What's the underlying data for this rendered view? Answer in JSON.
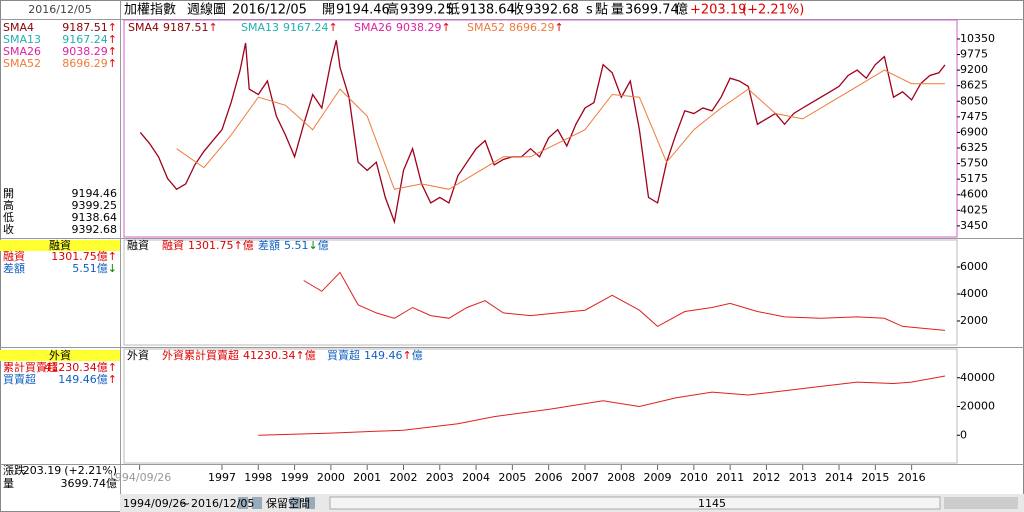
{
  "header": {
    "name": "加權指數",
    "period": "週線圖",
    "date": "2016/12/05",
    "open_label": "開",
    "open": 9194.46,
    "high_label": "高",
    "high": 9399.25,
    "low_label": "低",
    "low": 9138.64,
    "close_label": "收",
    "close": 9392.68,
    "close_flag": "s",
    "unit": "點",
    "volume_label": "量",
    "volume": 3699.74,
    "volume_unit": "億",
    "change": "+203.19",
    "change_pct": "(+2.21%)"
  },
  "sma": [
    {
      "name": "SMA4",
      "value": 9187.51,
      "arrow": "↑",
      "color": "#8b0000"
    },
    {
      "name": "SMA13",
      "value": 9167.24,
      "arrow": "↑",
      "color": "#20b0b0"
    },
    {
      "name": "SMA26",
      "value": 9038.29,
      "arrow": "↑",
      "color": "#e020a0"
    },
    {
      "name": "SMA52",
      "value": 8696.29,
      "arrow": "↑",
      "color": "#f07a3a"
    }
  ],
  "margin": {
    "title": "融資",
    "balance_label": "融資",
    "balance": 1301.75,
    "unit": "億",
    "balance_arrow": "↑",
    "diff_label": "差額",
    "diff": 5.51,
    "diff_arrow": "↓"
  },
  "foreign": {
    "title": "外資",
    "cum_label": "累計買賣超",
    "cum": 41230.34,
    "cum_arrow": "↑",
    "net_label": "買賣超",
    "net": 149.46,
    "net_arrow": "↑"
  },
  "summary": {
    "change_label": "漲跌",
    "change": 203.19,
    "change_pct": "(+2.21%)"
  },
  "footer": {
    "start": "1994/09/26",
    "sep": "~",
    "end": "2016/12/05",
    "reserve": "保留空間",
    "count": 1145
  },
  "chart_data": [
    {
      "type": "line",
      "xlim": [
        1994.3,
        2017.25
      ],
      "ylim": [
        3040,
        11050
      ],
      "yticks": [
        3450,
        4025,
        4600,
        5175,
        5750,
        6325,
        6900,
        7475,
        8050,
        8625,
        9200,
        9775,
        10350
      ],
      "xticks": [
        {
          "value": 1994.73,
          "label": "1994/09/26"
        },
        1997,
        1998,
        1999,
        2000,
        2001,
        2002,
        2003,
        2004,
        2005,
        2006,
        2007,
        2008,
        2009,
        2010,
        2011,
        2012,
        2013,
        2014,
        2015,
        2016
      ],
      "series": [
        {
          "color": "#a0001a",
          "x": [
            1994.75,
            1995,
            1995.25,
            1995.5,
            1995.75,
            1996,
            1996.25,
            1996.5,
            1996.75,
            1997,
            1997.25,
            1997.5,
            1997.65,
            1997.75,
            1998,
            1998.25,
            1998.5,
            1998.75,
            1999,
            1999.25,
            1999.5,
            1999.75,
            2000,
            2000.15,
            2000.25,
            2000.5,
            2000.75,
            2001,
            2001.25,
            2001.5,
            2001.75,
            2002,
            2002.25,
            2002.5,
            2002.75,
            2003,
            2003.25,
            2003.5,
            2003.75,
            2004,
            2004.25,
            2004.5,
            2004.75,
            2005,
            2005.25,
            2005.5,
            2005.75,
            2006,
            2006.25,
            2006.5,
            2006.75,
            2007,
            2007.25,
            2007.5,
            2007.75,
            2008,
            2008.25,
            2008.5,
            2008.75,
            2009,
            2009.25,
            2009.5,
            2009.75,
            2010,
            2010.25,
            2010.5,
            2010.75,
            2011,
            2011.25,
            2011.5,
            2011.75,
            2012,
            2012.25,
            2012.5,
            2012.75,
            2013,
            2013.25,
            2013.5,
            2013.75,
            2014,
            2014.25,
            2014.5,
            2014.75,
            2015,
            2015.25,
            2015.5,
            2015.75,
            2016,
            2016.25,
            2016.5,
            2016.75,
            2016.92
          ],
          "values": [
            6900,
            6500,
            6000,
            5200,
            4800,
            5000,
            5700,
            6200,
            6600,
            7000,
            8000,
            9200,
            10200,
            8500,
            8300,
            8800,
            7500,
            6800,
            6000,
            7200,
            8300,
            7800,
            9500,
            10300,
            9300,
            8200,
            5800,
            5500,
            5800,
            4500,
            3600,
            5500,
            6300,
            5000,
            4300,
            4500,
            4300,
            5300,
            5800,
            6300,
            6600,
            5700,
            5900,
            6000,
            6000,
            6300,
            6000,
            6700,
            7000,
            6400,
            7200,
            7800,
            8000,
            9400,
            9100,
            8200,
            8800,
            7000,
            4500,
            4300,
            5800,
            6800,
            7700,
            7600,
            7800,
            7700,
            8200,
            8900,
            8800,
            8600,
            7200,
            7400,
            7600,
            7200,
            7600,
            7800,
            8000,
            8200,
            8400,
            8600,
            9000,
            9200,
            8900,
            9400,
            9700,
            8200,
            8400,
            8100,
            8700,
            9000,
            9100,
            9392.68
          ]
        },
        {
          "name": "SMA52",
          "color": "#f07a3a",
          "x": [
            1995.75,
            1996.5,
            1997.25,
            1998,
            1998.75,
            1999.5,
            2000.25,
            2001,
            2001.75,
            2002.5,
            2003.25,
            2004,
            2004.75,
            2005.5,
            2006.25,
            2007,
            2007.75,
            2008.5,
            2009.25,
            2010,
            2010.75,
            2011.5,
            2012.25,
            2013,
            2013.75,
            2014.5,
            2015.25,
            2016,
            2016.92
          ],
          "values": [
            6300,
            5600,
            6800,
            8200,
            7900,
            7000,
            8500,
            7500,
            4800,
            5000,
            4800,
            5400,
            6000,
            6000,
            6500,
            7000,
            8300,
            8200,
            5800,
            7000,
            7800,
            8500,
            7600,
            7400,
            8000,
            8600,
            9200,
            8700,
            8696.29
          ]
        }
      ]
    },
    {
      "type": "line",
      "xlim": [
        1994.3,
        2017.25
      ],
      "ylim": [
        220,
        8000
      ],
      "yticks": [
        2000,
        4000,
        6000
      ],
      "series": [
        {
          "name": "融資",
          "color": "#e02020",
          "x": [
            1999.25,
            1999.75,
            2000.25,
            2000.75,
            2001.25,
            2001.75,
            2002.25,
            2002.75,
            2003.25,
            2003.75,
            2004.25,
            2004.75,
            2005.5,
            2006.25,
            2007,
            2007.75,
            2008.5,
            2009,
            2009.75,
            2010.5,
            2011,
            2011.75,
            2012.5,
            2013.5,
            2014.5,
            2015.25,
            2015.75,
            2016.92
          ],
          "values": [
            5000,
            4200,
            5600,
            3200,
            2600,
            2200,
            3000,
            2400,
            2200,
            3000,
            3500,
            2600,
            2400,
            2600,
            2800,
            3900,
            2800,
            1600,
            2700,
            3000,
            3300,
            2700,
            2300,
            2200,
            2300,
            2200,
            1600,
            1301.75
          ]
        }
      ]
    },
    {
      "type": "line",
      "xlim": [
        1994.3,
        2017.25
      ],
      "ylim": [
        -19300,
        60000
      ],
      "yticks": [
        0,
        20000,
        40000
      ],
      "series": [
        {
          "name": "累計買賣超",
          "color": "#e02020",
          "x": [
            1998,
            2000,
            2002,
            2003.5,
            2004.5,
            2006,
            2007.5,
            2008.5,
            2009.5,
            2010.5,
            2011.5,
            2012.5,
            2013.5,
            2014.5,
            2015.5,
            2016,
            2016.92
          ],
          "values": [
            0,
            1500,
            3500,
            8000,
            13000,
            18000,
            24000,
            20000,
            26000,
            30000,
            28000,
            31000,
            34000,
            37000,
            36000,
            37000,
            41230.34
          ]
        }
      ]
    }
  ]
}
